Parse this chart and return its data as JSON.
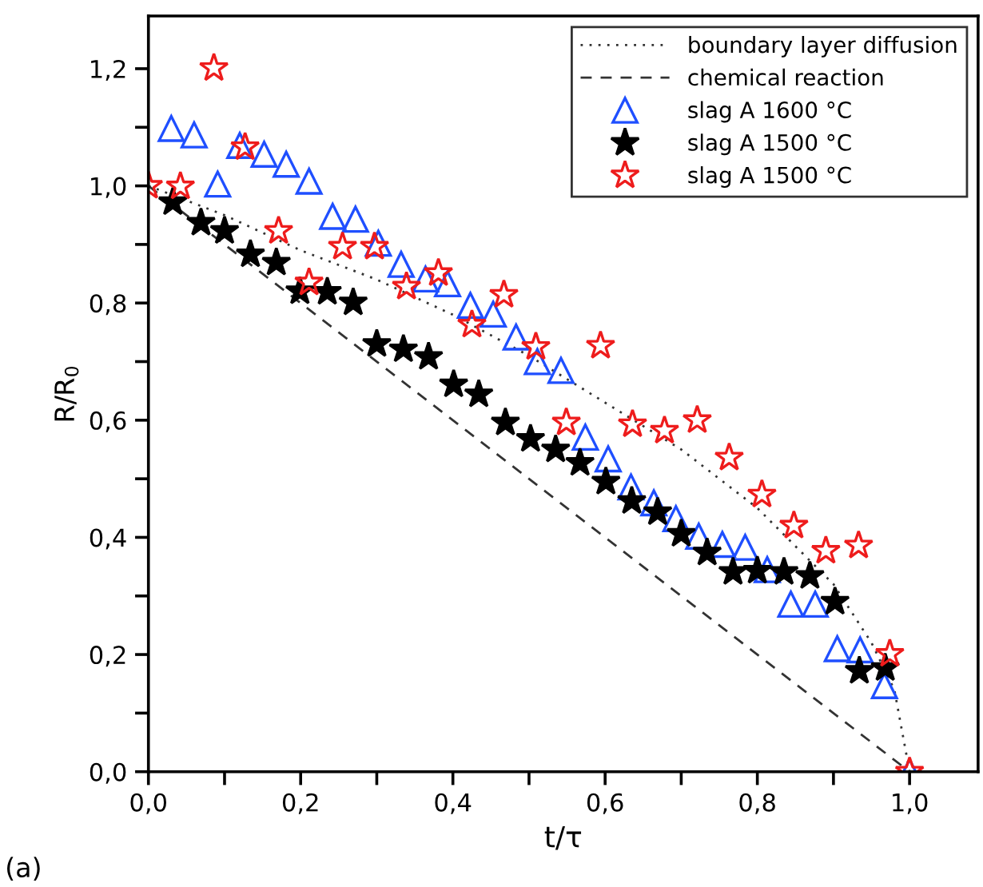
{
  "chart_data": {
    "type": "scatter",
    "xlabel": "t/τ",
    "ylabel": "R/R$_{0}$",
    "annotations": [
      "(a)"
    ],
    "xlim": [
      0,
      1.09
    ],
    "ylim": [
      0,
      1.29
    ],
    "xticks": [
      {
        "value": 0,
        "label": "0,0"
      },
      {
        "value": 0.1,
        "label": null
      },
      {
        "value": 0.2,
        "label": "0,2"
      },
      {
        "value": 0.3,
        "label": null
      },
      {
        "value": 0.4,
        "label": "0,4"
      },
      {
        "value": 0.5,
        "label": null
      },
      {
        "value": 0.6,
        "label": "0,6"
      },
      {
        "value": 0.7,
        "label": null
      },
      {
        "value": 0.8,
        "label": "0,8"
      },
      {
        "value": 0.9,
        "label": null
      },
      {
        "value": 1.0,
        "label": "1,0"
      }
    ],
    "yticks": [
      {
        "value": 0,
        "label": "0,0"
      },
      {
        "value": 0.1,
        "label": null
      },
      {
        "value": 0.2,
        "label": "0,2"
      },
      {
        "value": 0.3,
        "label": null
      },
      {
        "value": 0.4,
        "label": "0,4"
      },
      {
        "value": 0.5,
        "label": null
      },
      {
        "value": 0.6,
        "label": "0,6"
      },
      {
        "value": 0.7,
        "label": null
      },
      {
        "value": 0.8,
        "label": "0,8"
      },
      {
        "value": 0.9,
        "label": null
      },
      {
        "value": 1.0,
        "label": "1,0"
      },
      {
        "value": 1.1,
        "label": null
      },
      {
        "value": 1.2,
        "label": "1,2"
      }
    ],
    "grid": false,
    "legend": "top right",
    "series": [
      {
        "name": "boundary layer diffusion",
        "type": "line",
        "line_style": "dotted",
        "marker": "none",
        "color": "#333333",
        "x": [
          0,
          0.1,
          0.2,
          0.3,
          0.4,
          0.5,
          0.6,
          0.7,
          0.8,
          0.9,
          0.95,
          0.98,
          1.0
        ],
        "values": [
          1.0,
          0.95,
          0.89,
          0.84,
          0.78,
          0.71,
          0.63,
          0.55,
          0.45,
          0.32,
          0.22,
          0.14,
          0.0
        ]
      },
      {
        "name": "chemical reaction",
        "type": "line",
        "line_style": "dashed",
        "marker": "none",
        "color": "#333333",
        "x": [
          0,
          1.0
        ],
        "values": [
          1.0,
          0.0
        ]
      },
      {
        "name": "slag A 1600 °C",
        "marker": "triangle",
        "color": "#1f4fff",
        "x": [
          0.03,
          0.06,
          0.091,
          0.12,
          0.152,
          0.181,
          0.211,
          0.242,
          0.272,
          0.302,
          0.332,
          0.364,
          0.393,
          0.423,
          0.453,
          0.483,
          0.511,
          0.542,
          0.574,
          0.604,
          0.634,
          0.664,
          0.693,
          0.723,
          0.754,
          0.784,
          0.813,
          0.844,
          0.876,
          0.905,
          0.935,
          0.967,
          1.0
        ],
        "values": [
          1.098,
          1.087,
          1.003,
          1.069,
          1.054,
          1.037,
          1.008,
          0.948,
          0.943,
          0.902,
          0.866,
          0.841,
          0.833,
          0.796,
          0.781,
          0.742,
          0.7,
          0.685,
          0.571,
          0.534,
          0.486,
          0.459,
          0.432,
          0.402,
          0.388,
          0.383,
          0.345,
          0.286,
          0.286,
          0.21,
          0.208,
          0.147,
          0.0
        ]
      },
      {
        "name": "slag A 1500 °C",
        "marker": "star",
        "color": "#000000",
        "x": [
          0.032,
          0.069,
          0.1,
          0.134,
          0.168,
          0.199,
          0.235,
          0.269,
          0.3,
          0.335,
          0.368,
          0.401,
          0.434,
          0.469,
          0.502,
          0.535,
          0.567,
          0.601,
          0.635,
          0.669,
          0.7,
          0.734,
          0.768,
          0.8,
          0.835,
          0.869,
          0.902,
          0.934,
          0.968
        ],
        "values": [
          0.972,
          0.937,
          0.923,
          0.883,
          0.869,
          0.82,
          0.819,
          0.801,
          0.73,
          0.721,
          0.708,
          0.661,
          0.644,
          0.596,
          0.568,
          0.55,
          0.527,
          0.495,
          0.462,
          0.443,
          0.406,
          0.374,
          0.341,
          0.343,
          0.341,
          0.334,
          0.29,
          0.172,
          0.177
        ]
      },
      {
        "name": "slag A 1500 °C",
        "marker": "star",
        "color": "#ee1c1c",
        "x": [
          0.0,
          0.042,
          0.086,
          0.127,
          0.171,
          0.211,
          0.255,
          0.297,
          0.339,
          0.381,
          0.425,
          0.467,
          0.509,
          0.549,
          0.594,
          0.636,
          0.678,
          0.721,
          0.763,
          0.806,
          0.848,
          0.89,
          0.933,
          0.974,
          1.0
        ],
        "values": [
          1.0,
          0.999,
          1.201,
          1.066,
          0.923,
          0.835,
          0.896,
          0.896,
          0.828,
          0.851,
          0.763,
          0.814,
          0.725,
          0.596,
          0.727,
          0.593,
          0.582,
          0.6,
          0.536,
          0.473,
          0.42,
          0.377,
          0.386,
          0.201,
          0.0
        ]
      }
    ]
  }
}
